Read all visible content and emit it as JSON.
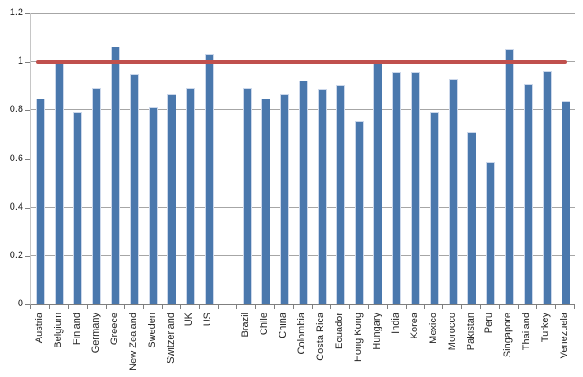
{
  "chart_title": "",
  "chart_data": {
    "type": "bar",
    "title": "",
    "xlabel": "",
    "ylabel": "",
    "categories": [
      "Austria",
      "Belgium",
      "Finland",
      "Germany",
      "Greece",
      "New Zealand",
      "Sweden",
      "Switzerland",
      "UK",
      "US",
      "Brazil",
      "Chile",
      "China",
      "Colombia",
      "Costa Rica",
      "Ecuador",
      "Hong Kong",
      "Hungary",
      "India",
      "Korea",
      "Mexico",
      "Morocco",
      "Pakistan",
      "Peru",
      "Singapore",
      "Thailand",
      "Turkey",
      "Venezuela"
    ],
    "values": [
      0.845,
      0.995,
      0.79,
      0.89,
      1.06,
      0.945,
      0.81,
      0.865,
      0.89,
      1.03,
      0.89,
      0.845,
      0.865,
      0.92,
      0.885,
      0.9,
      0.755,
      0.995,
      0.955,
      0.955,
      0.79,
      0.925,
      0.71,
      0.585,
      1.05,
      0.905,
      0.96,
      0.835
    ],
    "gap_after_index": 9,
    "ylim": [
      0,
      1.2
    ],
    "yticks": [
      1.2,
      1.0,
      0.8,
      0.6,
      0.4,
      0.2,
      0
    ],
    "ytick_labels": [
      "1.2",
      "1",
      "0.8",
      "0.6",
      "0.4",
      "0.2",
      "0"
    ],
    "grid": true,
    "legend": "none",
    "reference_line": {
      "value": 1.0,
      "color": "#c0504d",
      "thickness_px": 4
    },
    "bar_color": "#4a78ad",
    "bar_edge_color": "#ccd8eb",
    "gridline_color": "#a6a6a6",
    "axis_color": "#7f7f7f",
    "label_color": "#262626"
  }
}
